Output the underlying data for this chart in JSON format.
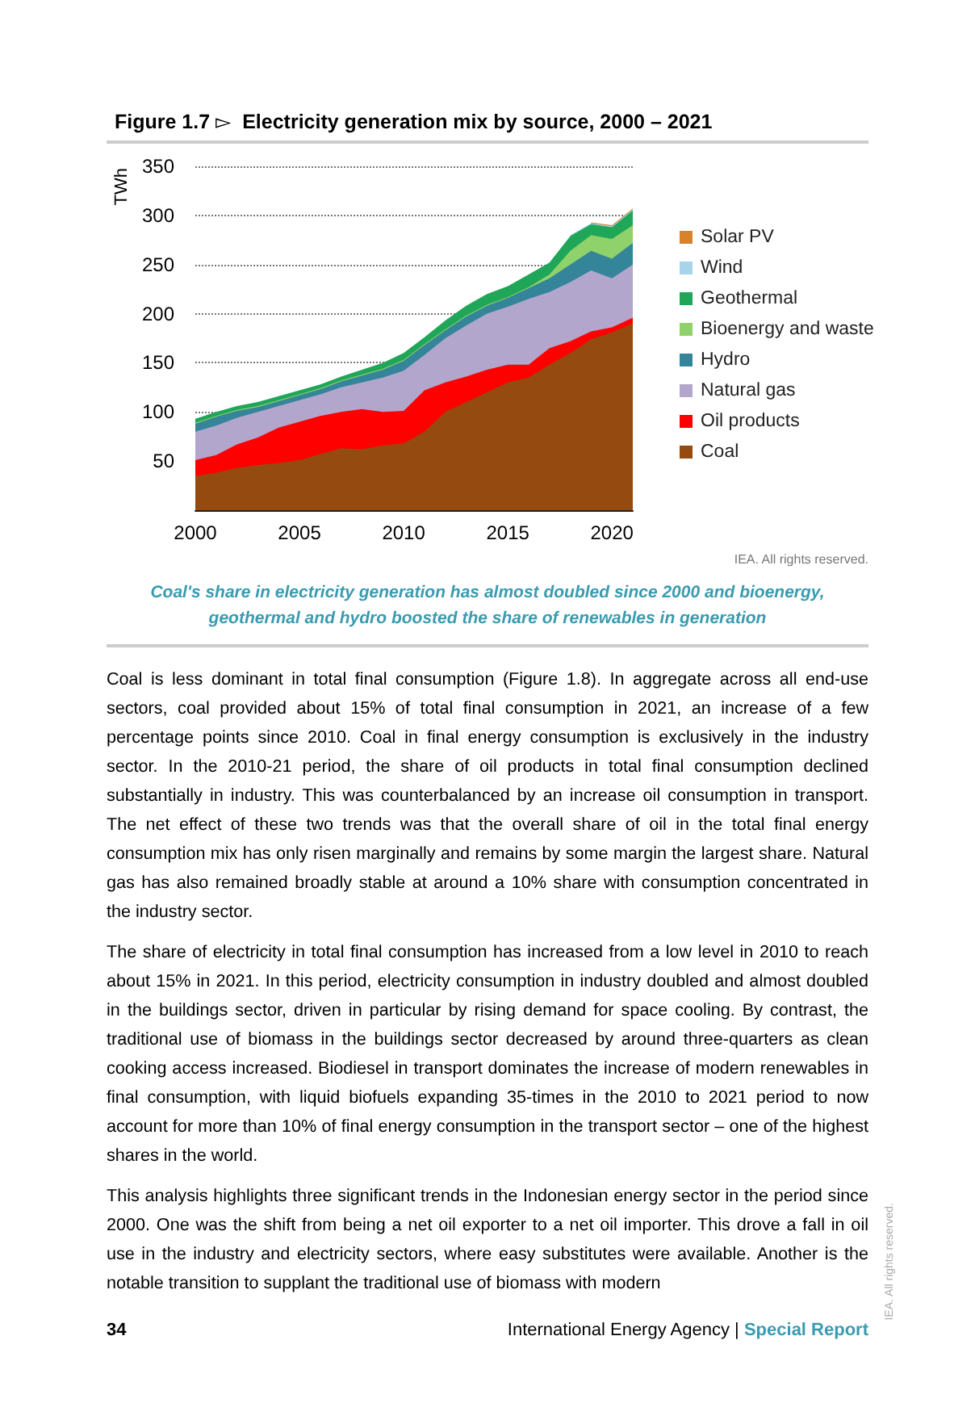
{
  "chart_data": {
    "type": "area",
    "title": "Figure 1.7 ▻  Electricity generation mix by source, 2000 – 2021",
    "ylabel": "TWh",
    "x": [
      2000,
      2001,
      2002,
      2003,
      2004,
      2005,
      2006,
      2007,
      2008,
      2009,
      2010,
      2011,
      2012,
      2013,
      2014,
      2015,
      2016,
      2017,
      2018,
      2019,
      2020,
      2021
    ],
    "stacked": true,
    "series": [
      {
        "name": "Coal",
        "color": "#954a0f",
        "values": [
          35,
          38,
          43,
          46,
          48,
          51,
          57,
          63,
          62,
          66,
          68,
          80,
          100,
          110,
          120,
          130,
          135,
          148,
          160,
          174,
          181,
          190
        ]
      },
      {
        "name": "Oil products",
        "color": "#ff0000",
        "values": [
          16,
          18,
          24,
          28,
          36,
          39,
          39,
          37,
          41,
          34,
          33,
          42,
          30,
          26,
          23,
          18,
          13,
          17,
          12,
          8,
          5,
          6
        ]
      },
      {
        "name": "Natural gas",
        "color": "#b3a6cc",
        "values": [
          29,
          30,
          27,
          26,
          22,
          22,
          22,
          25,
          27,
          35,
          41,
          36,
          45,
          52,
          57,
          59,
          67,
          57,
          60,
          62,
          50,
          54
        ]
      },
      {
        "name": "Hydro",
        "color": "#34849a",
        "values": [
          8,
          9,
          7,
          5,
          5,
          5,
          5,
          6,
          7,
          8,
          10,
          10,
          8,
          9,
          8,
          9,
          11,
          14,
          18,
          20,
          20,
          22
        ]
      },
      {
        "name": "Bioenergy and waste",
        "color": "#8fd16a",
        "values": [
          1,
          1,
          1,
          1,
          1,
          1,
          1,
          1,
          1,
          1,
          1,
          1,
          1,
          1,
          1,
          1,
          1,
          4,
          14,
          16,
          20,
          18
        ]
      },
      {
        "name": "Geothermal",
        "color": "#1fa659",
        "values": [
          4,
          4,
          4,
          4,
          4,
          4,
          4,
          4,
          5,
          6,
          7,
          7,
          9,
          10,
          11,
          11,
          13,
          12,
          15,
          11,
          12,
          15
        ]
      },
      {
        "name": "Wind",
        "color": "#a7d4ea",
        "values": [
          null,
          null,
          null,
          null,
          null,
          null,
          null,
          null,
          null,
          null,
          null,
          null,
          null,
          null,
          null,
          null,
          null,
          null,
          1,
          1,
          1,
          1
        ]
      },
      {
        "name": "Solar PV",
        "color": "#d8832c",
        "values": [
          null,
          null,
          null,
          null,
          null,
          null,
          null,
          null,
          null,
          null,
          null,
          null,
          null,
          null,
          null,
          null,
          null,
          null,
          null,
          1,
          1,
          1
        ]
      }
    ],
    "xlim": [
      2000,
      2021
    ],
    "xticks": [
      2000,
      2005,
      2010,
      2015,
      2020
    ],
    "ylim": [
      0,
      350
    ],
    "yticks": [
      50,
      100,
      150,
      200,
      250,
      300,
      350
    ],
    "grid": "y",
    "legend": "right",
    "annotations": [
      "IEA. All rights reserved.",
      "Coal's share in electricity generation has almost doubled since 2000 and bioenergy, geothermal and hydro boosted the share of renewables in generation",
      "Coal is less dominant in total final consumption (Figure 1.8). In aggregate across all end-use sectors, coal provided about 15% of total final consumption in 2021, an increase of a few percentage points since 2010. Coal in final energy consumption is exclusively in the industry sector. In the 2010-21 period, the share of oil products in total final consumption declined substantially in industry. This was counterbalanced by an increase oil consumption in transport. The net effect of these two trends was that the overall share of oil in the total final energy consumption mix has only risen marginally and remains by some margin the largest share. Natural gas has also remained broadly stable at around a 10% share with consumption concentrated in the industry sector.",
      "The share of electricity in total final consumption has increased from a low level in 2010 to reach about 15% in 2021. In this period, electricity consumption in industry doubled and almost doubled in the buildings sector, driven in particular by rising demand for space cooling. By contrast, the traditional use of biomass in the buildings sector decreased by around three-quarters as clean cooking access increased. Biodiesel in transport dominates the increase of modern renewables in final consumption, with liquid biofuels expanding 35-times in the 2010 to 2021 period to now account for more than 10% of final energy consumption in the transport sector – one of the highest shares in the world.",
      "This analysis highlights three significant trends in the Indonesian energy sector in the period since 2000. One was the shift from being a net oil exporter to a net oil importer. This drove a fall in oil use in the industry and electricity sectors, where easy substitutes were available. Another is the notable transition to supplant the traditional use of biomass with modern",
      "34",
      "International Energy Agency |",
      "Special Report",
      "IEA. All rights reserved."
    ]
  }
}
